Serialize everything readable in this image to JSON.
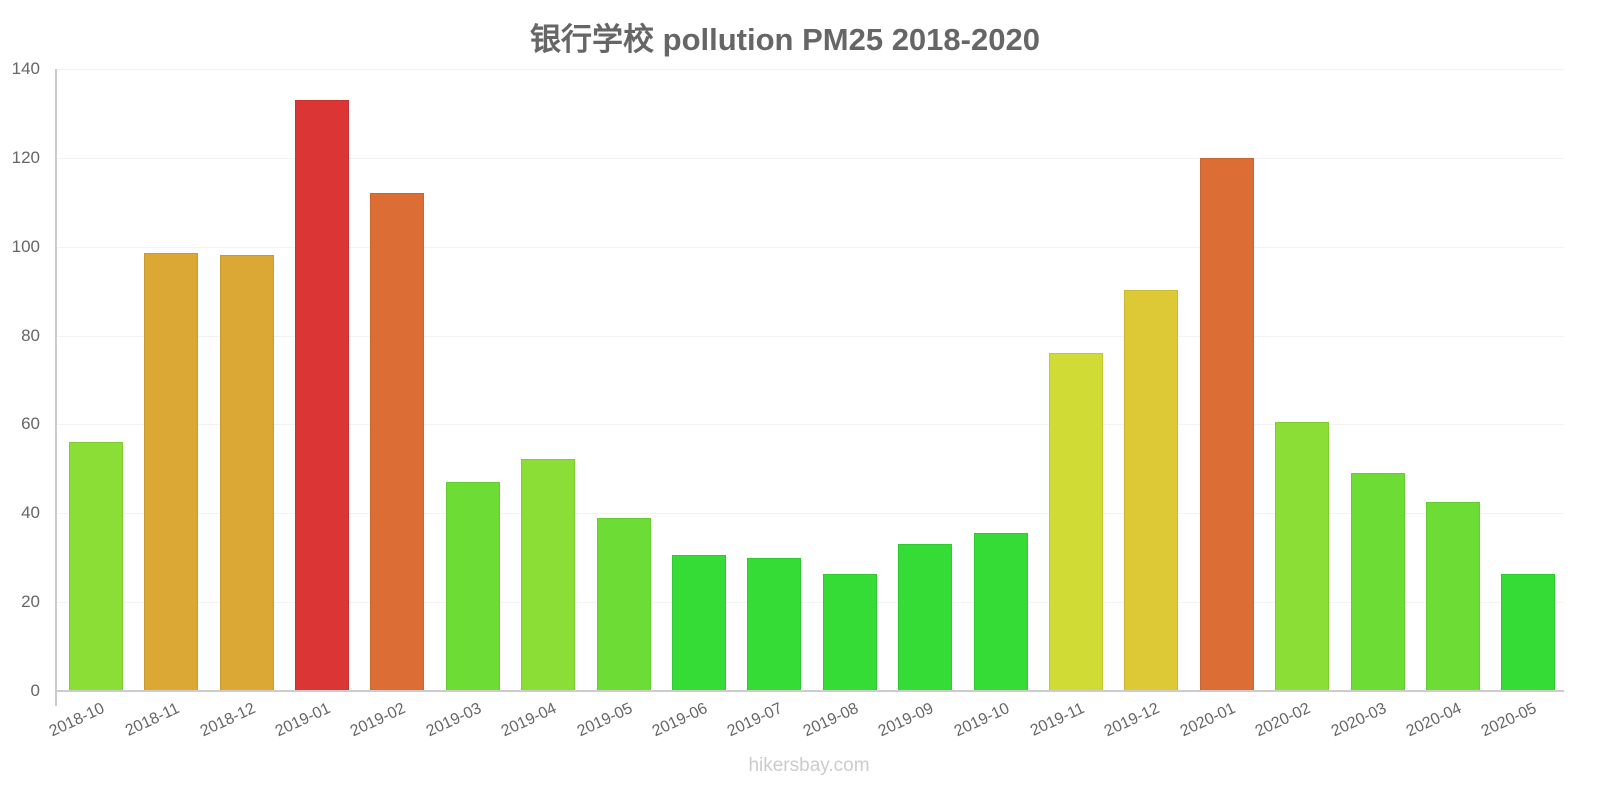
{
  "title": "银行学校 pollution PM25 2018-2020",
  "watermark": "hikersbay.com",
  "chart_data": {
    "type": "bar",
    "title": "银行学校 pollution PM25 2018-2020",
    "xlabel": "",
    "ylabel": "",
    "ylim": [
      0,
      140
    ],
    "yticks": [
      0,
      20,
      40,
      60,
      80,
      100,
      120,
      140
    ],
    "grid": true,
    "legend": null,
    "categories": [
      "2018-10",
      "2018-11",
      "2018-12",
      "2019-01",
      "2019-02",
      "2019-03",
      "2019-04",
      "2019-05",
      "2019-06",
      "2019-07",
      "2019-08",
      "2019-09",
      "2019-10",
      "2019-11",
      "2019-12",
      "2020-01",
      "2020-02",
      "2020-03",
      "2020-04",
      "2020-05"
    ],
    "values": [
      56,
      98.6,
      98.1,
      133,
      112,
      47,
      52.2,
      39,
      30.6,
      30,
      26.3,
      33.1,
      35.6,
      76,
      90.3,
      120,
      60.5,
      49.1,
      42.5,
      26.3
    ],
    "colors": [
      "#8ade35",
      "#dba835",
      "#dba835",
      "#db3535",
      "#dc6e35",
      "#6ddd35",
      "#8ade35",
      "#6ddd35",
      "#35dc35",
      "#35dc35",
      "#35dc35",
      "#35dc35",
      "#35dc35",
      "#d0dc35",
      "#dcc935",
      "#dc6e35",
      "#8ade35",
      "#6ddd35",
      "#6ddd35",
      "#35dc35"
    ]
  }
}
